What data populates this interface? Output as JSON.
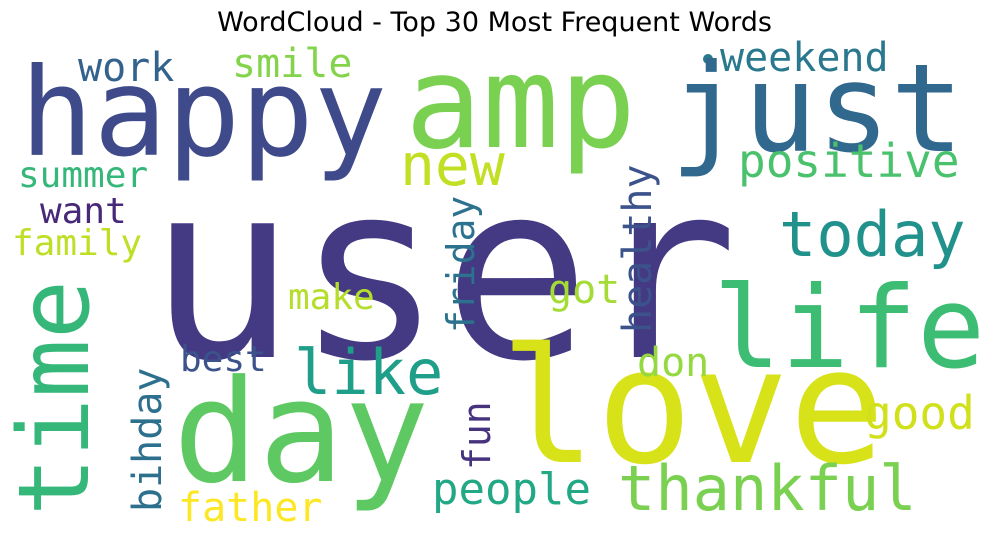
{
  "title": "WordCloud - Top 30 Most Frequent Words",
  "words": [
    {
      "text": "user",
      "color": "#443983"
    },
    {
      "text": "love",
      "color": "#d8e219"
    },
    {
      "text": "amp",
      "color": "#7ad151"
    },
    {
      "text": "happy",
      "color": "#3e4a89"
    },
    {
      "text": "just",
      "color": "#31688e"
    },
    {
      "text": "day",
      "color": "#5ec962"
    },
    {
      "text": "time",
      "color": "#35b779"
    },
    {
      "text": "life",
      "color": "#3dbc74"
    },
    {
      "text": "today",
      "color": "#21918c"
    },
    {
      "text": "thankful",
      "color": "#7ad151"
    },
    {
      "text": "like",
      "color": "#1f9e89"
    },
    {
      "text": "new",
      "color": "#c2df23"
    },
    {
      "text": "positive",
      "color": "#4ac16d"
    },
    {
      "text": "weekend",
      "color": "#2a788e"
    },
    {
      "text": "people",
      "color": "#22a884"
    },
    {
      "text": "good",
      "color": "#d0e11c"
    },
    {
      "text": "smile",
      "color": "#84d44b"
    },
    {
      "text": "work",
      "color": "#33638d"
    },
    {
      "text": "summer",
      "color": "#35b779"
    },
    {
      "text": "want",
      "color": "#482878"
    },
    {
      "text": "family",
      "color": "#bddf26"
    },
    {
      "text": "healthy",
      "color": "#3b528b"
    },
    {
      "text": "friday",
      "color": "#2c728e"
    },
    {
      "text": "got",
      "color": "#a5db36"
    },
    {
      "text": "make",
      "color": "#b5de2b"
    },
    {
      "text": "best",
      "color": "#3b528b"
    },
    {
      "text": "don",
      "color": "#95d840"
    },
    {
      "text": "bihday",
      "color": "#2d708e"
    },
    {
      "text": "fun",
      "color": "#46337e"
    },
    {
      "text": "father",
      "color": "#fde725"
    }
  ]
}
